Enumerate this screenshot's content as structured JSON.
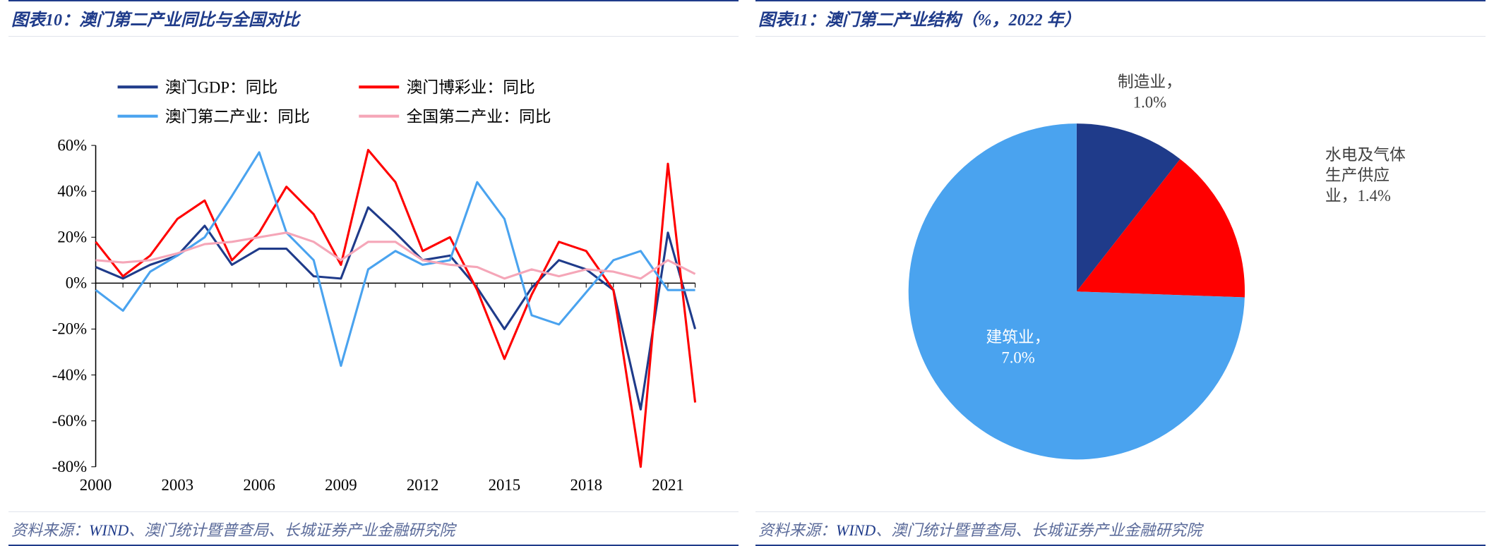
{
  "left": {
    "title": "图表10：澳门第二产业同比与全国对比",
    "source_prefix": "资料来源：",
    "source_wind": "WIND",
    "source_rest": "、澳门统计暨普查局、长城证券产业金融研究院",
    "chart": {
      "type": "line",
      "legend_fontsize": 22,
      "axis_fontsize": 22,
      "tick_color": "#000000",
      "axis_color": "#000000",
      "background_color": "#ffffff",
      "x_years": [
        2000,
        2001,
        2002,
        2003,
        2004,
        2005,
        2006,
        2007,
        2008,
        2009,
        2010,
        2011,
        2012,
        2013,
        2014,
        2015,
        2016,
        2017,
        2018,
        2019,
        2020,
        2021,
        2022
      ],
      "x_labels": [
        "2000",
        "2003",
        "2006",
        "2009",
        "2012",
        "2015",
        "2018",
        "2021"
      ],
      "x_label_years": [
        2000,
        2003,
        2006,
        2009,
        2012,
        2015,
        2018,
        2021
      ],
      "ylim": [
        -80,
        60
      ],
      "ytick_step": 20,
      "yticks": [
        -80,
        -60,
        -40,
        -20,
        0,
        20,
        40,
        60
      ],
      "line_width": 3,
      "series": [
        {
          "name": "澳门GDP：同比",
          "color": "#1f3b8a",
          "data": [
            7,
            2,
            8,
            12,
            25,
            8,
            15,
            15,
            3,
            2,
            33,
            22,
            10,
            12,
            -2,
            -20,
            -2,
            10,
            6,
            -3,
            -55,
            22,
            -20
          ]
        },
        {
          "name": "澳门博彩业：同比",
          "color": "#ff0000",
          "data": [
            18,
            3,
            12,
            28,
            36,
            10,
            22,
            42,
            30,
            8,
            58,
            44,
            14,
            20,
            -3,
            -33,
            -5,
            18,
            14,
            -3,
            -80,
            52,
            -52
          ]
        },
        {
          "name": "澳门第二产业：同比",
          "color": "#4aa3ef",
          "data": [
            -3,
            -12,
            5,
            12,
            20,
            38,
            57,
            22,
            10,
            -36,
            6,
            14,
            8,
            10,
            44,
            28,
            -14,
            -18,
            -4,
            10,
            14,
            -3,
            -3
          ]
        },
        {
          "name": "全国第二产业：同比",
          "color": "#f5a6b8",
          "data": [
            10,
            9,
            10,
            13,
            17,
            18,
            20,
            22,
            18,
            10,
            18,
            18,
            10,
            8,
            7,
            2,
            6,
            3,
            6,
            5,
            2,
            10,
            4
          ]
        }
      ]
    }
  },
  "right": {
    "title": "图表11：澳门第二产业结构（%，2022 年）",
    "source_prefix": "资料来源：",
    "source_wind": "WIND",
    "source_rest": "、澳门统计暨普查局、长城证券产业金融研究院",
    "chart": {
      "type": "pie",
      "label_fontsize": 22,
      "label_color": "#404040",
      "slices": [
        {
          "name": "制造业",
          "label_l1": "制造业，",
          "label_l2": "1.0%",
          "value": 1.0,
          "angle_deg": 38,
          "color": "#1f3b8a"
        },
        {
          "name": "水电及气体生产供应业",
          "label_l1": "水电及气体",
          "label_l2": "生产供应",
          "label_l3": "业，1.4%",
          "value": 1.4,
          "angle_deg": 54,
          "color": "#ff0000"
        },
        {
          "name": "建筑业",
          "label_l1": "建筑业，",
          "label_l2": "7.0%",
          "value": 7.0,
          "angle_deg": 268,
          "color": "#4aa3ef"
        }
      ]
    }
  }
}
